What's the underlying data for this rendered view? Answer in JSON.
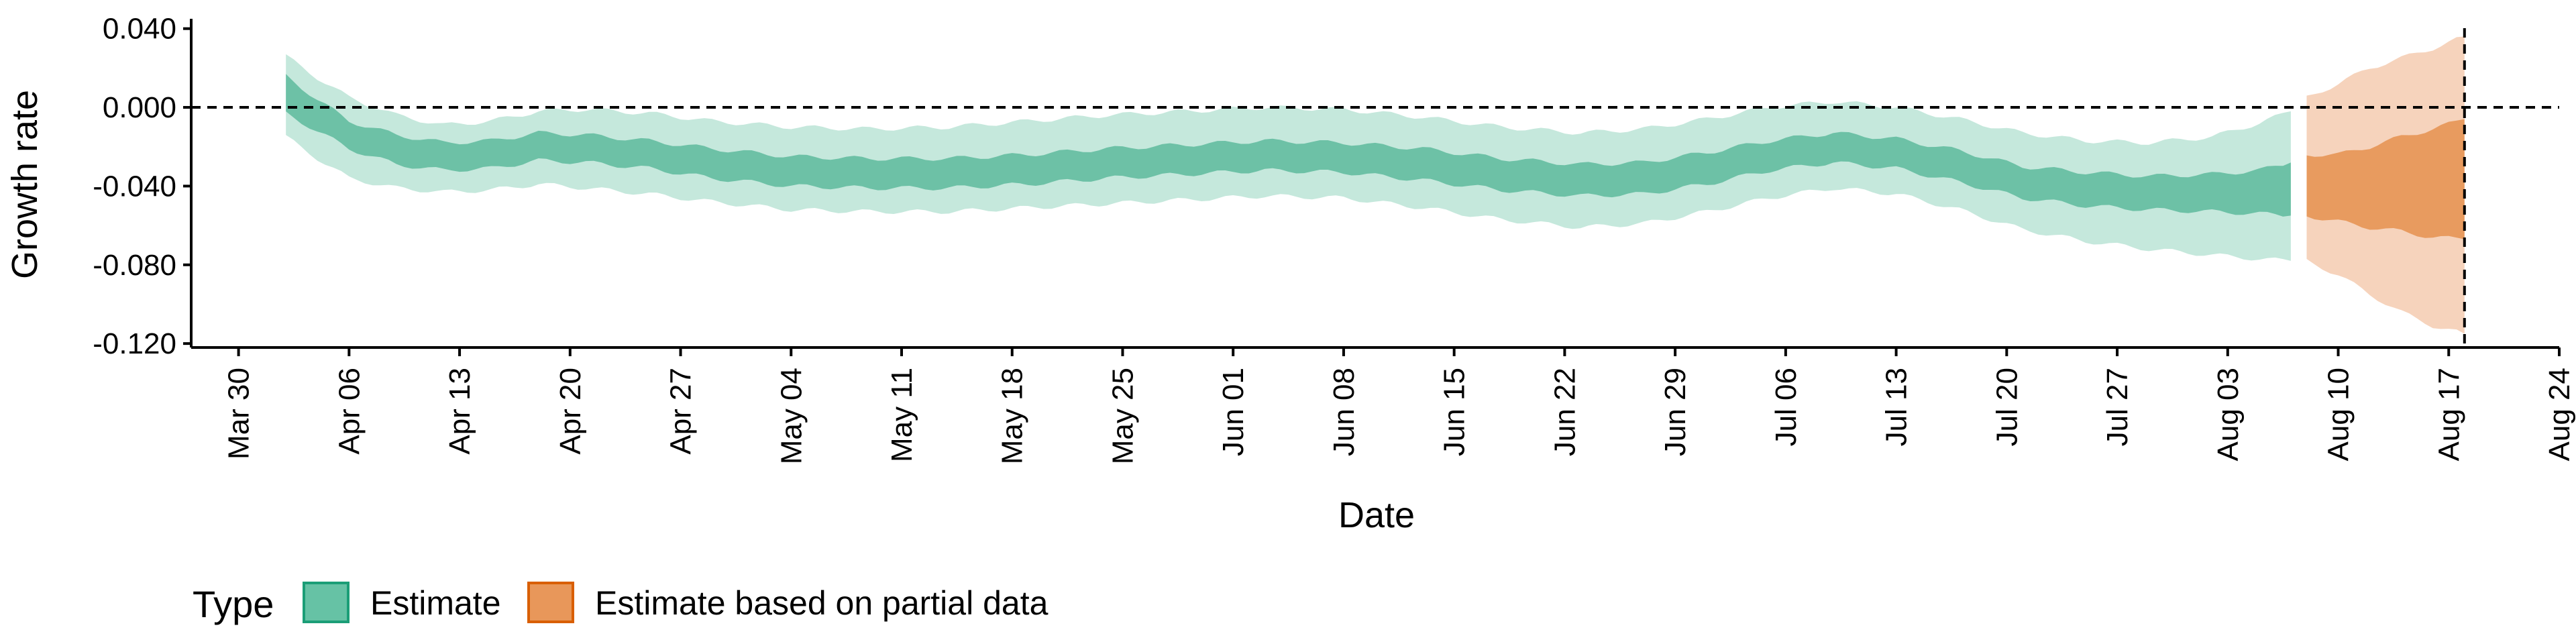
{
  "chart_data": {
    "type": "area",
    "xlabel": "Date",
    "ylabel": "Growth rate",
    "xlim": [
      "2020-03-27",
      "2020-08-24"
    ],
    "ylim": [
      -0.122,
      0.045
    ],
    "x_ticks": [
      {
        "date": "2020-03-30",
        "label": "Mar 30"
      },
      {
        "date": "2020-04-06",
        "label": "Apr 06"
      },
      {
        "date": "2020-04-13",
        "label": "Apr 13"
      },
      {
        "date": "2020-04-20",
        "label": "Apr 20"
      },
      {
        "date": "2020-04-27",
        "label": "Apr 27"
      },
      {
        "date": "2020-05-04",
        "label": "May 04"
      },
      {
        "date": "2020-05-11",
        "label": "May 11"
      },
      {
        "date": "2020-05-18",
        "label": "May 18"
      },
      {
        "date": "2020-05-25",
        "label": "May 25"
      },
      {
        "date": "2020-06-01",
        "label": "Jun 01"
      },
      {
        "date": "2020-06-08",
        "label": "Jun 08"
      },
      {
        "date": "2020-06-15",
        "label": "Jun 15"
      },
      {
        "date": "2020-06-22",
        "label": "Jun 22"
      },
      {
        "date": "2020-06-29",
        "label": "Jun 29"
      },
      {
        "date": "2020-07-06",
        "label": "Jul 06"
      },
      {
        "date": "2020-07-13",
        "label": "Jul 13"
      },
      {
        "date": "2020-07-20",
        "label": "Jul 20"
      },
      {
        "date": "2020-07-27",
        "label": "Jul 27"
      },
      {
        "date": "2020-08-03",
        "label": "Aug 03"
      },
      {
        "date": "2020-08-10",
        "label": "Aug 10"
      },
      {
        "date": "2020-08-17",
        "label": "Aug 17"
      },
      {
        "date": "2020-08-24",
        "label": "Aug 24"
      }
    ],
    "y_ticks": [
      {
        "value": 0.04,
        "label": "0.040"
      },
      {
        "value": 0.0,
        "label": "0.000"
      },
      {
        "value": -0.04,
        "label": "-0.040"
      },
      {
        "value": -0.08,
        "label": "-0.080"
      },
      {
        "value": -0.12,
        "label": "-0.120"
      }
    ],
    "reference_lines": {
      "horizontal_y": 0.0,
      "vertical_date": "2020-08-18",
      "style": "dashed"
    },
    "legend": {
      "title": "Type",
      "position": "bottom-left",
      "entries": [
        {
          "label": "Estimate",
          "fill": "#66C2A5",
          "border": "#1B9E77"
        },
        {
          "label": "Estimate based on partial data",
          "fill": "#E8975A",
          "border": "#D95F02"
        }
      ]
    },
    "series": [
      {
        "name": "Estimate",
        "color_outer": "#C5E8DC",
        "color_inner": "#6DC1A6",
        "points": [
          {
            "date": "2020-04-02",
            "upper90": 0.026,
            "upper50": 0.016,
            "lower50": -0.003,
            "lower90": -0.015
          },
          {
            "date": "2020-04-04",
            "upper90": 0.015,
            "upper50": 0.004,
            "lower50": -0.012,
            "lower90": -0.026
          },
          {
            "date": "2020-04-06",
            "upper90": 0.005,
            "upper50": -0.007,
            "lower50": -0.021,
            "lower90": -0.036
          },
          {
            "date": "2020-04-09",
            "upper90": -0.004,
            "upper50": -0.014,
            "lower50": -0.029,
            "lower90": -0.041
          },
          {
            "date": "2020-04-12",
            "upper90": -0.009,
            "upper50": -0.018,
            "lower50": -0.032,
            "lower90": -0.043
          },
          {
            "date": "2020-04-15",
            "upper90": -0.007,
            "upper50": -0.017,
            "lower50": -0.031,
            "lower90": -0.042
          },
          {
            "date": "2020-04-18",
            "upper90": -0.002,
            "upper50": -0.013,
            "lower50": -0.027,
            "lower90": -0.039
          },
          {
            "date": "2020-04-21",
            "upper90": -0.001,
            "upper50": -0.014,
            "lower50": -0.028,
            "lower90": -0.041
          },
          {
            "date": "2020-04-25",
            "upper90": -0.003,
            "upper50": -0.017,
            "lower50": -0.031,
            "lower90": -0.044
          },
          {
            "date": "2020-04-29",
            "upper90": -0.007,
            "upper50": -0.021,
            "lower50": -0.036,
            "lower90": -0.048
          },
          {
            "date": "2020-05-04",
            "upper90": -0.01,
            "upper50": -0.025,
            "lower50": -0.04,
            "lower90": -0.052
          },
          {
            "date": "2020-05-09",
            "upper90": -0.011,
            "upper50": -0.026,
            "lower50": -0.041,
            "lower90": -0.053
          },
          {
            "date": "2020-05-14",
            "upper90": -0.01,
            "upper50": -0.026,
            "lower50": -0.041,
            "lower90": -0.053
          },
          {
            "date": "2020-05-19",
            "upper90": -0.007,
            "upper50": -0.024,
            "lower50": -0.039,
            "lower90": -0.051
          },
          {
            "date": "2020-05-24",
            "upper90": -0.004,
            "upper50": -0.021,
            "lower50": -0.036,
            "lower90": -0.049
          },
          {
            "date": "2020-05-29",
            "upper90": -0.002,
            "upper50": -0.019,
            "lower50": -0.034,
            "lower90": -0.047
          },
          {
            "date": "2020-06-03",
            "upper90": 0.0,
            "upper50": -0.017,
            "lower50": -0.032,
            "lower90": -0.045
          },
          {
            "date": "2020-06-08",
            "upper90": -0.001,
            "upper50": -0.018,
            "lower50": -0.033,
            "lower90": -0.046
          },
          {
            "date": "2020-06-13",
            "upper90": -0.005,
            "upper50": -0.021,
            "lower50": -0.037,
            "lower90": -0.051
          },
          {
            "date": "2020-06-18",
            "upper90": -0.01,
            "upper50": -0.026,
            "lower50": -0.042,
            "lower90": -0.057
          },
          {
            "date": "2020-06-23",
            "upper90": -0.013,
            "upper50": -0.029,
            "lower50": -0.045,
            "lower90": -0.061
          },
          {
            "date": "2020-06-27",
            "upper90": -0.011,
            "upper50": -0.028,
            "lower50": -0.044,
            "lower90": -0.059
          },
          {
            "date": "2020-07-01",
            "upper90": -0.006,
            "upper50": -0.023,
            "lower50": -0.039,
            "lower90": -0.053
          },
          {
            "date": "2020-07-05",
            "upper90": 0.0,
            "upper50": -0.017,
            "lower50": -0.032,
            "lower90": -0.046
          },
          {
            "date": "2020-07-09",
            "upper90": 0.003,
            "upper50": -0.013,
            "lower50": -0.028,
            "lower90": -0.041
          },
          {
            "date": "2020-07-13",
            "upper90": 0.0,
            "upper50": -0.016,
            "lower50": -0.031,
            "lower90": -0.044
          },
          {
            "date": "2020-07-17",
            "upper90": -0.006,
            "upper50": -0.022,
            "lower50": -0.038,
            "lower90": -0.052
          },
          {
            "date": "2020-07-21",
            "upper90": -0.013,
            "upper50": -0.03,
            "lower50": -0.046,
            "lower90": -0.062
          },
          {
            "date": "2020-07-25",
            "upper90": -0.017,
            "upper50": -0.033,
            "lower50": -0.05,
            "lower90": -0.068
          },
          {
            "date": "2020-07-29",
            "upper90": -0.018,
            "upper50": -0.035,
            "lower50": -0.052,
            "lower90": -0.072
          },
          {
            "date": "2020-08-02",
            "upper90": -0.015,
            "upper50": -0.034,
            "lower50": -0.053,
            "lower90": -0.075
          },
          {
            "date": "2020-08-05",
            "upper90": -0.008,
            "upper50": -0.032,
            "lower50": -0.054,
            "lower90": -0.077
          },
          {
            "date": "2020-08-07",
            "upper90": -0.002,
            "upper50": -0.028,
            "lower50": -0.055,
            "lower90": -0.078
          }
        ]
      },
      {
        "name": "Estimate based on partial data",
        "color_outer": "#F6D3BC",
        "color_inner": "#E89B5F",
        "points": [
          {
            "date": "2020-08-08",
            "upper90": 0.005,
            "upper50": -0.024,
            "lower50": -0.055,
            "lower90": -0.078
          },
          {
            "date": "2020-08-10",
            "upper90": 0.012,
            "upper50": -0.024,
            "lower50": -0.058,
            "lower90": -0.085
          },
          {
            "date": "2020-08-12",
            "upper90": 0.02,
            "upper50": -0.02,
            "lower50": -0.061,
            "lower90": -0.095
          },
          {
            "date": "2020-08-14",
            "upper90": 0.025,
            "upper50": -0.015,
            "lower50": -0.063,
            "lower90": -0.104
          },
          {
            "date": "2020-08-16",
            "upper90": 0.03,
            "upper50": -0.011,
            "lower50": -0.066,
            "lower90": -0.111
          },
          {
            "date": "2020-08-18",
            "upper90": 0.036,
            "upper50": -0.006,
            "lower50": -0.067,
            "lower90": -0.115
          }
        ]
      }
    ]
  }
}
